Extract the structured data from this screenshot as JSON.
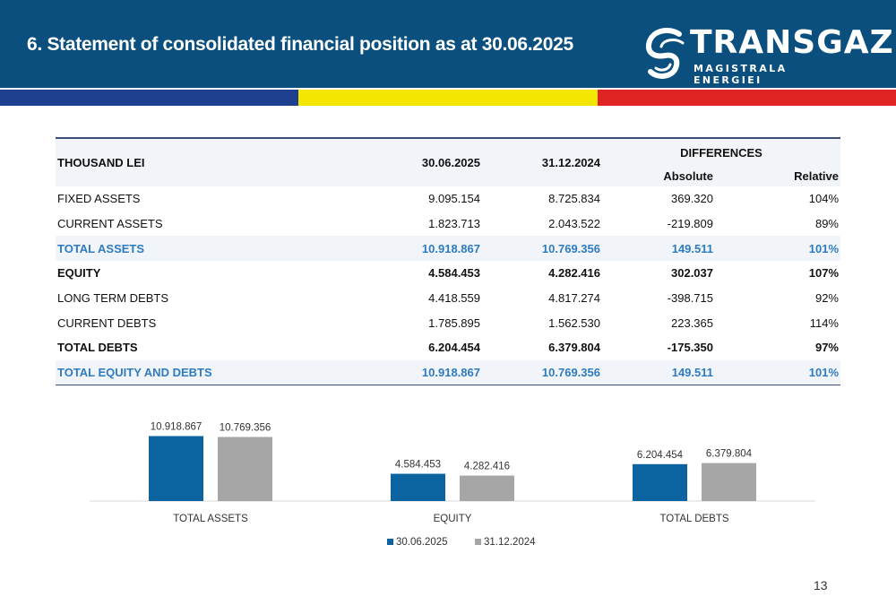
{
  "header": {
    "title": "6. Statement of consolidated financial position as at 30.06.2025",
    "logo_name": "TRANSGAZ",
    "logo_tagline": "MAGISTRALA ENERGIEI"
  },
  "colors": {
    "header_bg": "#0a4f7e",
    "stripe_blue": "#1f3f8f",
    "stripe_yellow": "#f4e600",
    "stripe_red": "#e02424",
    "series_1": "#0b64a0",
    "series_2": "#a6a6a6",
    "total_text": "#2e7bbf"
  },
  "table": {
    "unit_label": "THOUSAND LEI",
    "col_current": "30.06.2025",
    "col_previous": "31.12.2024",
    "differences_label": "DIFFERENCES",
    "col_absolute": "Absolute",
    "col_relative": "Relative",
    "rows": [
      {
        "label": "FIXED ASSETS",
        "current": "9.095.154",
        "previous": "8.725.834",
        "absolute": "369.320",
        "relative": "104%"
      },
      {
        "label": "CURRENT ASSETS",
        "current": "1.823.713",
        "previous": "2.043.522",
        "absolute": "-219.809",
        "relative": "89%"
      },
      {
        "label": "TOTAL ASSETS",
        "current": "10.918.867",
        "previous": "10.769.356",
        "absolute": "149.511",
        "relative": "101%"
      },
      {
        "label": "EQUITY",
        "current": "4.584.453",
        "previous": "4.282.416",
        "absolute": "302.037",
        "relative": "107%"
      },
      {
        "label": "LONG TERM DEBTS",
        "current": "4.418.559",
        "previous": "4.817.274",
        "absolute": "-398.715",
        "relative": "92%"
      },
      {
        "label": "CURRENT DEBTS",
        "current": "1.785.895",
        "previous": "1.562.530",
        "absolute": "223.365",
        "relative": "114%"
      },
      {
        "label": "TOTAL DEBTS",
        "current": "6.204.454",
        "previous": "6.379.804",
        "absolute": "-175.350",
        "relative": "97%"
      },
      {
        "label": "TOTAL EQUITY AND DEBTS",
        "current": "10.918.867",
        "previous": "10.769.356",
        "absolute": "149.511",
        "relative": "101%"
      }
    ]
  },
  "chart_data": {
    "type": "bar",
    "categories": [
      "TOTAL ASSETS",
      "EQUITY",
      "TOTAL DEBTS"
    ],
    "series": [
      {
        "name": "30.06.2025",
        "values": [
          10918867,
          4584453,
          6204454
        ],
        "labels": [
          "10.918.867",
          "4.584.453",
          "6.204.454"
        ]
      },
      {
        "name": "31.12.2024",
        "values": [
          10769356,
          4282416,
          6379804
        ],
        "labels": [
          "10.769.356",
          "4.282.416",
          "6.379.804"
        ]
      }
    ],
    "title": "",
    "xlabel": "",
    "ylabel": "",
    "ylim": [
      0,
      11500000
    ],
    "grid": false,
    "legend": "bottom"
  },
  "footer": {
    "page_number": "13"
  }
}
